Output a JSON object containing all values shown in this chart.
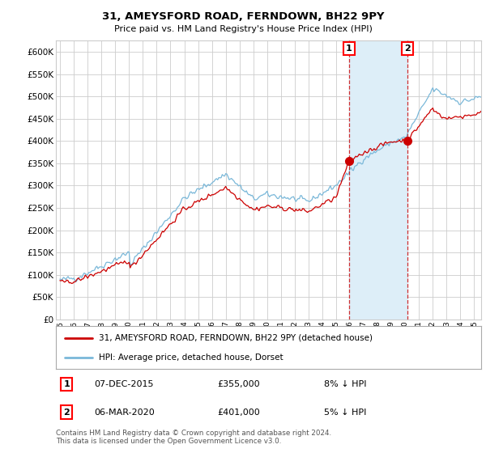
{
  "title_line1": "31, AMEYSFORD ROAD, FERNDOWN, BH22 9PY",
  "title_line2": "Price paid vs. HM Land Registry's House Price Index (HPI)",
  "ytick_values": [
    0,
    50000,
    100000,
    150000,
    200000,
    250000,
    300000,
    350000,
    400000,
    450000,
    500000,
    550000,
    600000
  ],
  "xlim_start": 1994.7,
  "xlim_end": 2025.5,
  "ylim_min": 0,
  "ylim_max": 625000,
  "hpi_color": "#7ab8d9",
  "price_color": "#cc0000",
  "shade_color": "#ddeef8",
  "marker1_year": 2015.92,
  "marker1_price": 355000,
  "marker1_label": "1",
  "marker1_date": "07-DEC-2015",
  "marker1_amount": "£355,000",
  "marker1_pct": "8% ↓ HPI",
  "marker2_year": 2020.17,
  "marker2_price": 401000,
  "marker2_label": "2",
  "marker2_date": "06-MAR-2020",
  "marker2_amount": "£401,000",
  "marker2_pct": "5% ↓ HPI",
  "legend_line1": "31, AMEYSFORD ROAD, FERNDOWN, BH22 9PY (detached house)",
  "legend_line2": "HPI: Average price, detached house, Dorset",
  "footer": "Contains HM Land Registry data © Crown copyright and database right 2024.\nThis data is licensed under the Open Government Licence v3.0.",
  "background_color": "#ffffff",
  "grid_color": "#cccccc"
}
